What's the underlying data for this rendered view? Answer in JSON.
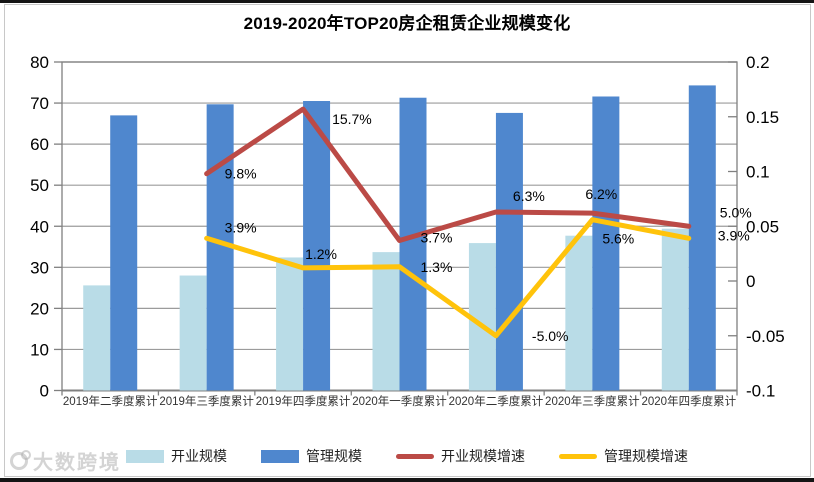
{
  "title": "2019-2020年TOP20房企租赁企业规模变化",
  "watermark": {
    "text": "大数跨境"
  },
  "colors": {
    "open_scale": "#B9DCE7",
    "management_scale": "#4F87CE",
    "open_growth": "#BB4A46",
    "management_growth": "#FFC30B",
    "gridline": "#9B9B9B",
    "axis": "#808080",
    "label_text": "#000000",
    "category_text": "#333333"
  },
  "legend": [
    {
      "label": "开业规模",
      "type": "rect",
      "colorKey": "open_scale"
    },
    {
      "label": "管理规模",
      "type": "rect",
      "colorKey": "management_scale"
    },
    {
      "label": "开业规模增速",
      "type": "line",
      "colorKey": "open_growth"
    },
    {
      "label": "管理规模增速",
      "type": "line",
      "colorKey": "management_growth"
    }
  ],
  "chart_data": {
    "type": "bar+line combo",
    "title": "2019-2020年TOP20房企租赁企业规模变化",
    "categories": [
      "2019年二季度累计",
      "2019年三季度累计",
      "2019年四季度累计",
      "2020年一季度累计",
      "2020年二季度累计",
      "2020年三季度累计",
      "2020年四季度累计"
    ],
    "left_axis": {
      "min": 0,
      "max": 80,
      "step": 10,
      "ticks": [
        "80",
        "70",
        "60",
        "50",
        "40",
        "30",
        "20",
        "10",
        "0"
      ]
    },
    "right_axis": {
      "min": -0.1,
      "max": 0.2,
      "step": 0.05,
      "ticks": [
        "0.2",
        "0.15",
        "0.1",
        "0.05",
        "0",
        "-0.05",
        "-0.1"
      ]
    },
    "grid": "horizontal-on",
    "legend_position": "bottom",
    "bar_series": [
      {
        "name": "开业规模",
        "axis": "left",
        "colorKey": "open_scale",
        "values": [
          25.6,
          28.0,
          32.4,
          33.7,
          35.9,
          37.7,
          39.4
        ]
      },
      {
        "name": "管理规模",
        "axis": "left",
        "colorKey": "management_scale",
        "values": [
          67.0,
          69.7,
          70.5,
          71.3,
          67.6,
          71.6,
          74.3
        ]
      }
    ],
    "line_series": [
      {
        "name": "开业规模增速",
        "axis": "right",
        "colorKey": "open_growth",
        "values": [
          null,
          0.098,
          0.157,
          0.037,
          0.063,
          0.062,
          0.05
        ],
        "labels": [
          null,
          "9.8%",
          "15.7%",
          "3.7%",
          "6.3%",
          "6.2%",
          "5.0%"
        ]
      },
      {
        "name": "管理规模增速",
        "axis": "right",
        "colorKey": "management_growth",
        "values": [
          null,
          0.039,
          0.012,
          0.013,
          -0.05,
          0.056,
          0.039
        ],
        "labels": [
          null,
          "3.9%",
          "1.2%",
          "1.3%",
          "-5.0%",
          "5.6%",
          "3.9%"
        ]
      }
    ]
  }
}
